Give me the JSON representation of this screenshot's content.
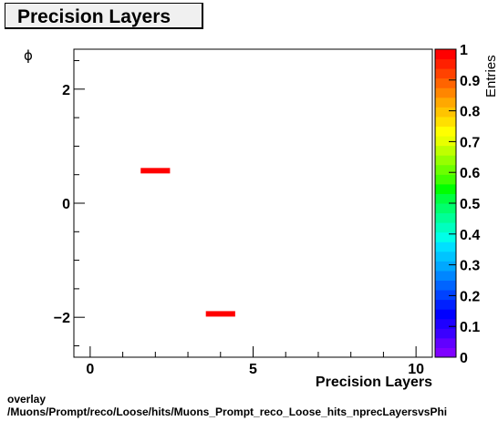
{
  "title": "Precision Layers",
  "footer": {
    "line1": "overlay",
    "line2": "/Muons/Prompt/reco/Loose/hits/Muons_Prompt_reco_Loose_hits_nprecLayersvsPhi"
  },
  "colors": {
    "frame": "#000000",
    "title_bg": "#f0f0f0",
    "mark": "#ff0000"
  },
  "chart_data": {
    "type": "heatmap",
    "title": "Precision Layers",
    "xlabel": "Precision Layers",
    "ylabel": "ϕ",
    "zlabel": "Entries",
    "xlim": [
      -0.5,
      10.5
    ],
    "ylim": [
      -2.7,
      2.7
    ],
    "zlim": [
      0,
      1
    ],
    "x_ticks": [
      0,
      5,
      10
    ],
    "y_ticks": [
      -2,
      0,
      2
    ],
    "z_ticks": [
      0,
      0.1,
      0.2,
      0.3,
      0.4,
      0.5,
      0.6,
      0.7,
      0.8,
      0.9,
      1
    ],
    "x_tick_labels": [
      "0",
      "5",
      "10"
    ],
    "y_tick_labels": [
      "−2",
      "0",
      "2"
    ],
    "z_tick_labels": [
      "0",
      "0.1",
      "0.2",
      "0.3",
      "0.4",
      "0.5",
      "0.6",
      "0.7",
      "0.8",
      "0.9",
      "1"
    ],
    "bin_width_x": 1,
    "bins": [
      {
        "x": 2,
        "y": 0.57,
        "z": 1
      },
      {
        "x": 4,
        "y": -1.94,
        "z": 1
      }
    ],
    "palette": [
      "#7f00ff",
      "#6100ff",
      "#3a00ff",
      "#1e00ff",
      "#0000ff",
      "#0020ff",
      "#0042ff",
      "#0064ff",
      "#0086ff",
      "#00a8ff",
      "#00c4ff",
      "#00e0ff",
      "#00ffe8",
      "#00ffbf",
      "#00ff96",
      "#00ff6c",
      "#00ff40",
      "#00ff00",
      "#40ff00",
      "#6cff00",
      "#96ff00",
      "#bfff00",
      "#e8ff00",
      "#ffff00",
      "#ffe000",
      "#ffc400",
      "#ffa800",
      "#ff8600",
      "#ff6400",
      "#ff4200",
      "#ff2000",
      "#ff0000"
    ],
    "grid": false,
    "legend": "colorbar-right"
  }
}
